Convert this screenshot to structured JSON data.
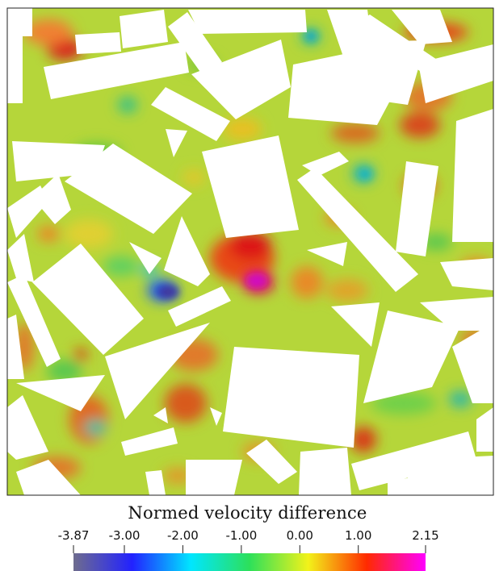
{
  "chart_data": {
    "type": "heatmap",
    "title": "",
    "xlabel": "",
    "ylabel": "",
    "colorbar": {
      "title": "Normed velocity difference",
      "min": -3.87,
      "max": 2.15,
      "ticks": [
        -3.87,
        -3.0,
        -2.0,
        -1.0,
        0.0,
        1.0,
        2.15
      ],
      "tick_labels": [
        "-3.87",
        "-3.00",
        "-2.00",
        "-1.00",
        "0.00",
        "1.00",
        "2.15"
      ],
      "colormap": "rainbow",
      "colormap_stops": [
        "#6e6c8e",
        "#2222ff",
        "#00e6ff",
        "#2de05a",
        "#f2f21a",
        "#ff2a00",
        "#ff00ff"
      ]
    },
    "background_value_color": "#b5d63a",
    "hotspots": [
      {
        "value": -3.87,
        "label": "min",
        "color": "#3a3aa8"
      },
      {
        "value": 2.15,
        "label": "max",
        "color": "#e010d0"
      }
    ]
  }
}
